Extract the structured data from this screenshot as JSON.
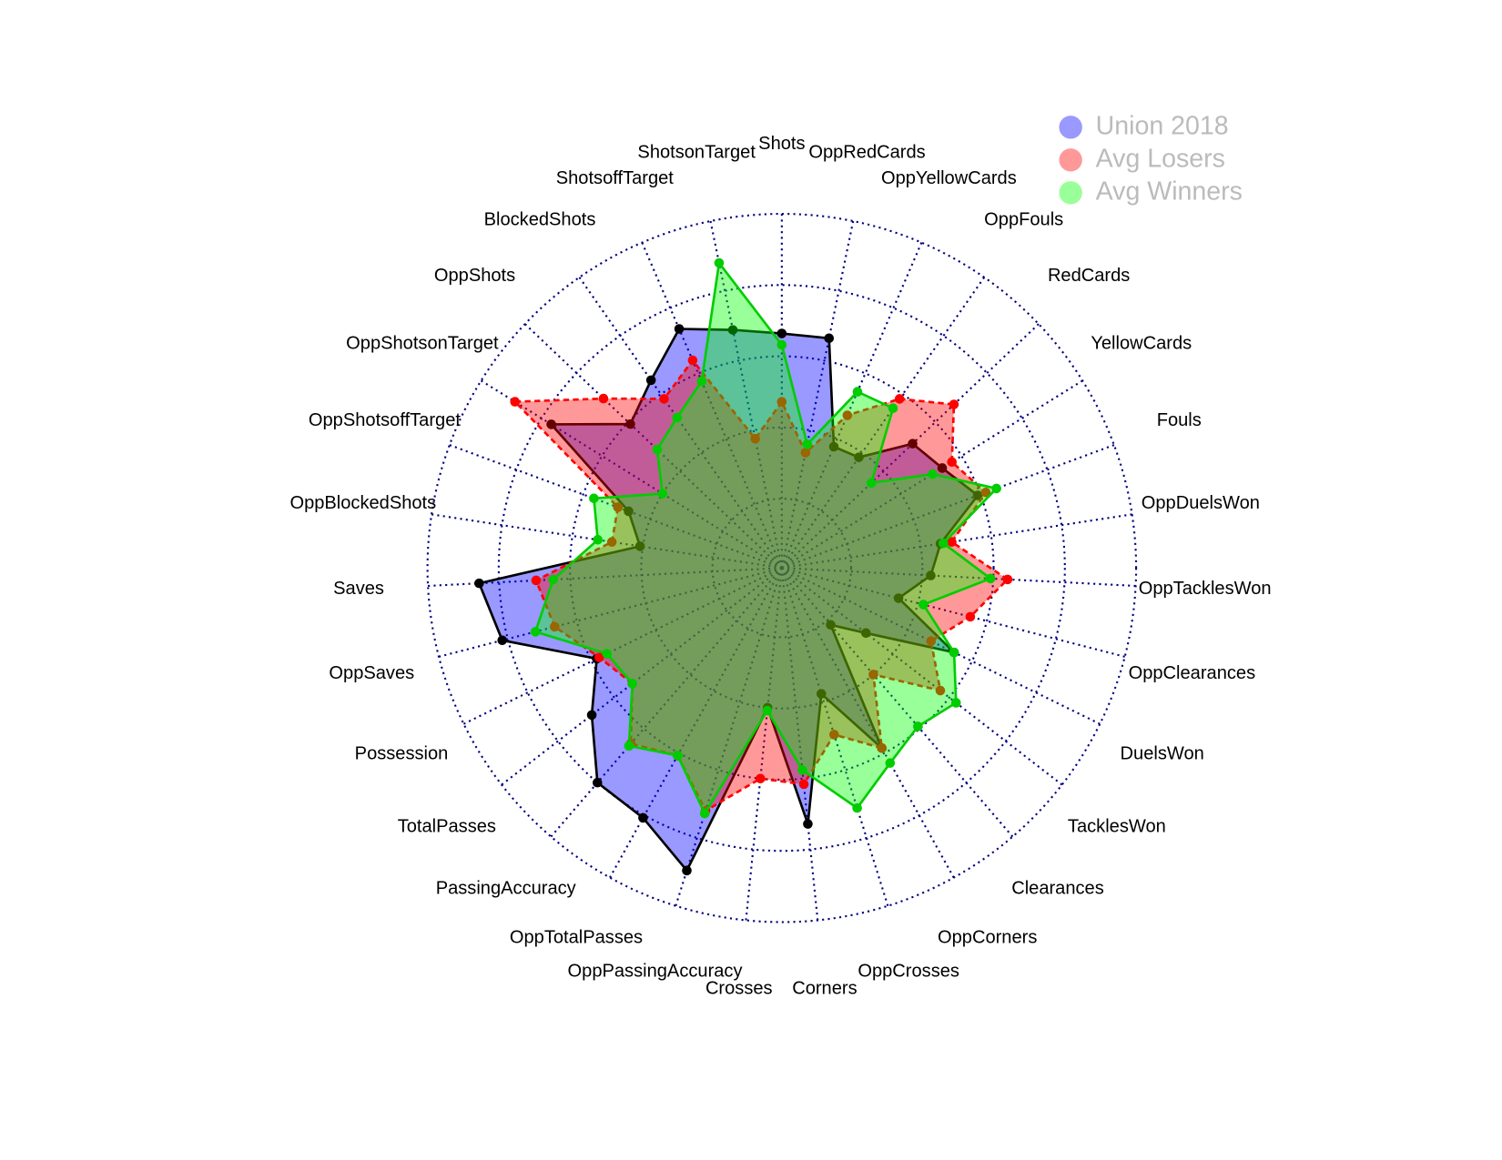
{
  "chart_data": {
    "type": "radar",
    "categories": [
      "Shots",
      "ShotsonTarget",
      "ShotsoffTarget",
      "BlockedShots",
      "OppShots",
      "OppShotsonTarget",
      "OppShotsoffTarget",
      "OppBlockedShots",
      "Saves",
      "OppSaves",
      "Possession",
      "TotalPasses",
      "PassingAccuracy",
      "OppTotalPasses",
      "OppPassingAccuracy",
      "Crosses",
      "Corners",
      "OppCrosses",
      "OppCorners",
      "Clearances",
      "TacklesWon",
      "DuelsWon",
      "OppClearances",
      "OppTacklesWon",
      "OppDuelsWon",
      "Fouls",
      "YellowCards",
      "RedCards",
      "OppFouls",
      "OppYellowCards",
      "OppRedCards"
    ],
    "rlim": [
      0,
      1
    ],
    "rticks": [
      0,
      0.25,
      0.5,
      0.75,
      1
    ],
    "grid": true,
    "legend_position": "top-right",
    "series": [
      {
        "name": "Union 2018",
        "color": "rgba(0,0,255,0.4)",
        "line_color": "#000000",
        "line_style": "solid",
        "values": [
          0.58,
          0.61,
          0.67,
          0.56,
          0.49,
          0.71,
          0.33,
          0.26,
          0.82,
          0.77,
          0.48,
          0.6,
          0.75,
          0.76,
          0.87,
          0.25,
          0.66,
          0.22,
          0.48,
          0.02,
          0.13,
          0.43,
          0.18,
          0.28,
          0.32,
          0.49,
          0.42,
          0.39,
          0.23,
          0.22,
          0.58
        ]
      },
      {
        "name": "Avg Losers",
        "color": "rgba(255,0,0,0.4)",
        "line_color": "#ff0000",
        "line_style": "dashed",
        "values": [
          0.34,
          0.22,
          0.55,
          0.48,
          0.62,
          0.86,
          0.37,
          0.36,
          0.62,
          0.58,
          0.47,
          0.42,
          0.57,
          0.51,
          0.65,
          0.5,
          0.52,
          0.37,
          0.48,
          0.25,
          0.46,
          0.34,
          0.44,
          0.55,
          0.36,
          0.52,
          0.46,
          0.59,
          0.48,
          0.34,
          0.17
        ]
      },
      {
        "name": "Avg Winners",
        "color": "rgba(0,255,0,0.4)",
        "line_color": "#00cc00",
        "line_style": "solid",
        "values": [
          0.54,
          0.85,
          0.47,
          0.4,
          0.36,
          0.25,
          0.46,
          0.41,
          0.56,
          0.65,
          0.44,
          0.42,
          0.58,
          0.51,
          0.66,
          0.26,
          0.47,
          0.64,
          0.54,
          0.49,
          0.53,
          0.43,
          0.27,
          0.49,
          0.33,
          0.56,
          0.38,
          0.19,
          0.44,
          0.43,
          0.2
        ]
      }
    ]
  }
}
